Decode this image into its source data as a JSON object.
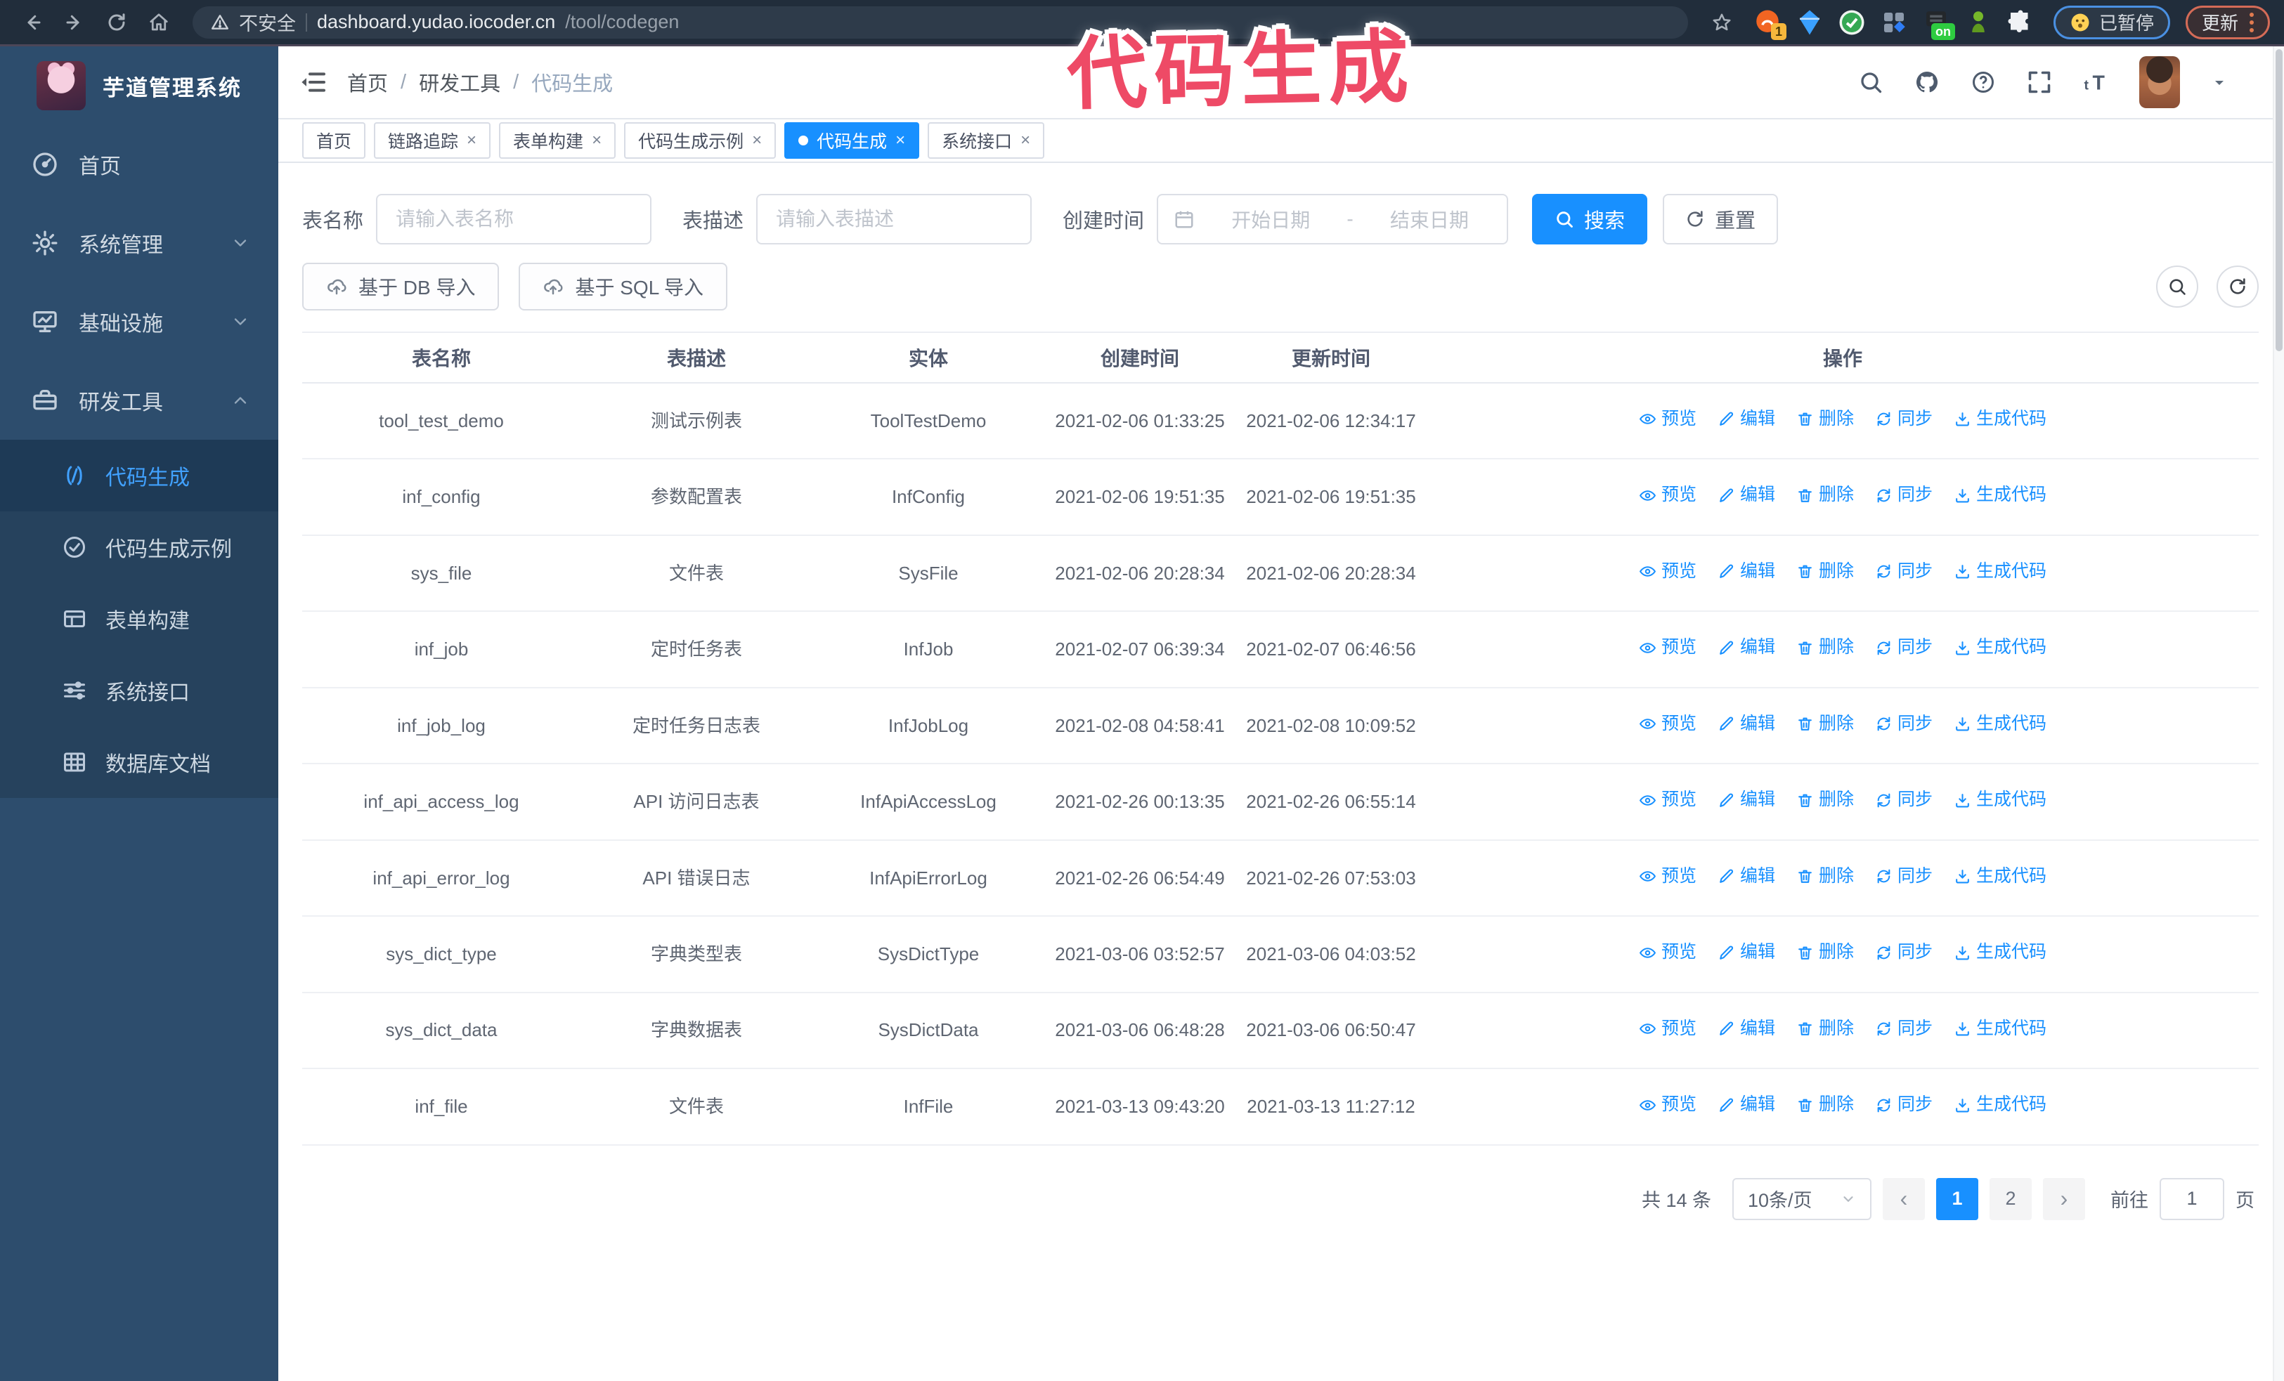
{
  "theme": {
    "primary": "#1890ff",
    "sidebar_bg": "#2d4d6d",
    "annotation_color": "#ee4a66"
  },
  "browser": {
    "security_label": "不安全",
    "url_host": "dashboard.yudao.iocoder.cn",
    "url_path": "/tool/codegen",
    "extension_badge_count": "1",
    "extension_badge_on": "on",
    "paused_badge": "已暂停",
    "update_label": "更新"
  },
  "annotation": {
    "text": "代码生成"
  },
  "sidebar": {
    "title": "芋道管理系统",
    "items": [
      {
        "label": "首页",
        "icon": "dashboard-icon"
      },
      {
        "label": "系统管理",
        "icon": "gear-icon",
        "chevron": "down"
      },
      {
        "label": "基础设施",
        "icon": "monitor-icon",
        "chevron": "down"
      },
      {
        "label": "研发工具",
        "icon": "toolbox-icon",
        "chevron": "up",
        "open": true
      }
    ],
    "submenu": [
      {
        "label": "代码生成",
        "icon": "code-icon",
        "active": true
      },
      {
        "label": "代码生成示例",
        "icon": "circle-check-icon"
      },
      {
        "label": "表单构建",
        "icon": "form-icon"
      },
      {
        "label": "系统接口",
        "icon": "sliders-icon"
      },
      {
        "label": "数据库文档",
        "icon": "database-icon"
      }
    ]
  },
  "header": {
    "breadcrumb": [
      "首页",
      "研发工具",
      "代码生成"
    ]
  },
  "tabbar": {
    "tabs": [
      {
        "label": "首页",
        "closable": false,
        "active": false
      },
      {
        "label": "链路追踪",
        "closable": true,
        "active": false
      },
      {
        "label": "表单构建",
        "closable": true,
        "active": false
      },
      {
        "label": "代码生成示例",
        "closable": true,
        "active": false
      },
      {
        "label": "代码生成",
        "closable": true,
        "active": true
      },
      {
        "label": "系统接口",
        "closable": true,
        "active": false
      }
    ]
  },
  "filters": {
    "table_name_label": "表名称",
    "table_name_placeholder": "请输入表名称",
    "table_desc_label": "表描述",
    "table_desc_placeholder": "请输入表描述",
    "create_time_label": "创建时间",
    "date_start_placeholder": "开始日期",
    "date_separator": "-",
    "date_end_placeholder": "结束日期",
    "search_label": "搜索",
    "reset_label": "重置"
  },
  "toolbar": {
    "import_db_label": "基于 DB 导入",
    "import_sql_label": "基于 SQL 导入"
  },
  "table": {
    "columns": [
      "表名称",
      "表描述",
      "实体",
      "创建时间",
      "更新时间",
      "操作"
    ],
    "row_actions": [
      "预览",
      "编辑",
      "删除",
      "同步",
      "生成代码"
    ],
    "rows": [
      {
        "name": "tool_test_demo",
        "description": "测试示例表",
        "entity": "ToolTestDemo",
        "created": "2021-02-06 01:33:25",
        "updated": "2021-02-06 12:34:17"
      },
      {
        "name": "inf_config",
        "description": "参数配置表",
        "entity": "InfConfig",
        "created": "2021-02-06 19:51:35",
        "updated": "2021-02-06 19:51:35"
      },
      {
        "name": "sys_file",
        "description": "文件表",
        "entity": "SysFile",
        "created": "2021-02-06 20:28:34",
        "updated": "2021-02-06 20:28:34"
      },
      {
        "name": "inf_job",
        "description": "定时任务表",
        "entity": "InfJob",
        "created": "2021-02-07 06:39:34",
        "updated": "2021-02-07 06:46:56"
      },
      {
        "name": "inf_job_log",
        "description": "定时任务日志表",
        "entity": "InfJobLog",
        "created": "2021-02-08 04:58:41",
        "updated": "2021-02-08 10:09:52"
      },
      {
        "name": "inf_api_access_log",
        "description": "API 访问日志表",
        "entity": "InfApiAccessLog",
        "created": "2021-02-26 00:13:35",
        "updated": "2021-02-26 06:55:14"
      },
      {
        "name": "inf_api_error_log",
        "description": "API 错误日志",
        "entity": "InfApiErrorLog",
        "created": "2021-02-26 06:54:49",
        "updated": "2021-02-26 07:53:03"
      },
      {
        "name": "sys_dict_type",
        "description": "字典类型表",
        "entity": "SysDictType",
        "created": "2021-03-06 03:52:57",
        "updated": "2021-03-06 04:03:52"
      },
      {
        "name": "sys_dict_data",
        "description": "字典数据表",
        "entity": "SysDictData",
        "created": "2021-03-06 06:48:28",
        "updated": "2021-03-06 06:50:47"
      },
      {
        "name": "inf_file",
        "description": "文件表",
        "entity": "InfFile",
        "created": "2021-03-13 09:43:20",
        "updated": "2021-03-13 11:27:12"
      }
    ]
  },
  "pagination": {
    "total": "共 14 条",
    "page_size": "10条/页",
    "pages": [
      "1",
      "2"
    ],
    "current_page": "1",
    "goto_label": "前往",
    "goto_value": "1",
    "goto_unit": "页"
  }
}
